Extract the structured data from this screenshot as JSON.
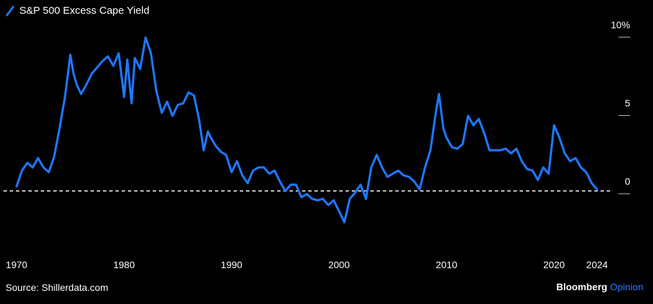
{
  "legend": {
    "label": "S&P 500 Excess Cape Yield"
  },
  "source": "Source: Shillerdata.com",
  "brand": {
    "name": "Bloomberg",
    "sub": "Opinion"
  },
  "colors": {
    "series": "#1f77ff",
    "brand_accent": "#2f7bff",
    "baseline": "#ffffff",
    "background": "#000000"
  },
  "chart_data": {
    "type": "line",
    "title": "",
    "xlabel": "",
    "ylabel": "",
    "xlim": [
      1970,
      2024
    ],
    "ylim": [
      -2,
      10
    ],
    "x_ticks": [
      1970,
      1980,
      1990,
      2000,
      2010,
      2020,
      2024
    ],
    "x_tick_labels": [
      "1970",
      "1980",
      "1990",
      "2000",
      "2010",
      "2020",
      "2024"
    ],
    "y_ticks": [
      0,
      5,
      10
    ],
    "y_tick_labels": [
      "0",
      "5",
      "10%"
    ],
    "reference_line": {
      "y": 0,
      "style": "dashed"
    },
    "series": [
      {
        "name": "S&P 500 Excess Cape Yield",
        "x": [
          1970.0,
          1970.5,
          1971.0,
          1971.5,
          1972.0,
          1972.5,
          1973.0,
          1973.5,
          1974.0,
          1974.5,
          1975.0,
          1975.3,
          1975.6,
          1976.0,
          1976.5,
          1977.0,
          1977.5,
          1978.0,
          1978.5,
          1979.0,
          1979.5,
          1980.0,
          1980.3,
          1980.7,
          1981.0,
          1981.5,
          1982.0,
          1982.5,
          1983.0,
          1983.5,
          1984.0,
          1984.5,
          1985.0,
          1985.5,
          1986.0,
          1986.5,
          1987.0,
          1987.4,
          1987.8,
          1988.0,
          1988.5,
          1989.0,
          1989.5,
          1990.0,
          1990.5,
          1991.0,
          1991.5,
          1992.0,
          1992.5,
          1993.0,
          1993.5,
          1994.0,
          1994.5,
          1995.0,
          1995.5,
          1996.0,
          1996.5,
          1997.0,
          1997.5,
          1998.0,
          1998.5,
          1999.0,
          1999.5,
          2000.0,
          2000.5,
          2001.0,
          2001.5,
          2002.0,
          2002.5,
          2003.0,
          2003.5,
          2004.0,
          2004.5,
          2005.0,
          2005.5,
          2006.0,
          2006.5,
          2007.0,
          2007.5,
          2008.0,
          2008.5,
          2009.0,
          2009.3,
          2009.7,
          2010.0,
          2010.5,
          2011.0,
          2011.5,
          2012.0,
          2012.5,
          2013.0,
          2013.5,
          2014.0,
          2014.5,
          2015.0,
          2015.5,
          2016.0,
          2016.5,
          2017.0,
          2017.5,
          2018.0,
          2018.5,
          2019.0,
          2019.5,
          2020.0,
          2020.5,
          2021.0,
          2021.5,
          2022.0,
          2022.5,
          2023.0,
          2023.5,
          2024.0
        ],
        "values": [
          0.3,
          1.3,
          1.8,
          1.5,
          2.1,
          1.5,
          1.2,
          2.2,
          4.0,
          6.0,
          8.7,
          7.5,
          6.8,
          6.2,
          6.8,
          7.5,
          7.9,
          8.3,
          8.6,
          8.0,
          8.8,
          6.0,
          8.4,
          5.6,
          8.5,
          7.8,
          9.8,
          8.8,
          6.4,
          5.0,
          5.7,
          4.8,
          5.5,
          5.6,
          6.3,
          6.1,
          4.5,
          2.6,
          3.8,
          3.5,
          2.9,
          2.5,
          2.3,
          1.2,
          1.9,
          1.0,
          0.5,
          1.3,
          1.5,
          1.5,
          1.1,
          1.3,
          0.6,
          0.0,
          0.4,
          0.4,
          -0.4,
          -0.2,
          -0.5,
          -0.6,
          -0.5,
          -0.9,
          -0.6,
          -1.3,
          -2.0,
          -0.5,
          -0.1,
          0.4,
          -0.5,
          1.5,
          2.3,
          1.5,
          0.9,
          1.1,
          1.3,
          1.0,
          0.9,
          0.6,
          0.1,
          1.5,
          2.6,
          5.0,
          6.2,
          4.0,
          3.4,
          2.8,
          2.7,
          3.0,
          4.8,
          4.2,
          4.6,
          3.7,
          2.6,
          2.6,
          2.6,
          2.7,
          2.4,
          2.7,
          1.9,
          1.4,
          1.3,
          0.7,
          1.5,
          1.1,
          4.2,
          3.4,
          2.4,
          1.9,
          2.1,
          1.5,
          1.2,
          0.5,
          0.1
        ]
      }
    ]
  }
}
